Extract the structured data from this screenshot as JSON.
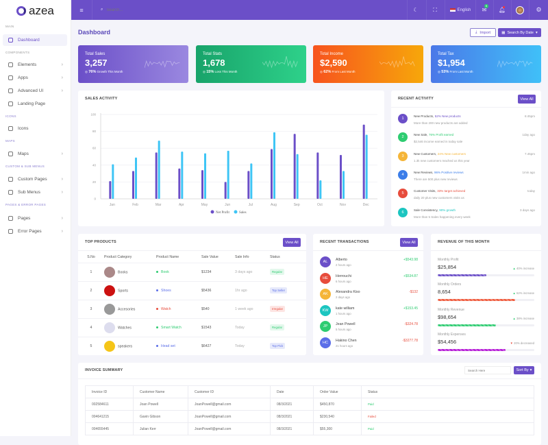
{
  "brand": "azea",
  "topbar": {
    "search_placeholder": "Search...",
    "language": "English",
    "mail_badge": "5"
  },
  "sidebar": {
    "sections": [
      "MAIN",
      "COMPONENTS",
      "ICONS",
      "MAPS",
      "CUSTOM & SUB MENUS",
      "PAGES & ERROR PAGES"
    ],
    "items": [
      {
        "label": "Dashboard"
      },
      {
        "label": "Elements"
      },
      {
        "label": "Apps"
      },
      {
        "label": "Advanced UI"
      },
      {
        "label": "Landing Page"
      },
      {
        "label": "Icons"
      },
      {
        "label": "Maps"
      },
      {
        "label": "Custom Pages"
      },
      {
        "label": "Sub Menus"
      },
      {
        "label": "Pages"
      },
      {
        "label": "Error Pages"
      }
    ]
  },
  "page": {
    "title": "Dashboard",
    "import_label": "Import",
    "search_date_label": "Search By Date"
  },
  "stats": [
    {
      "label": "Total Sales",
      "value": "3,257",
      "pct": "76%",
      "note": "Growth This Month"
    },
    {
      "label": "Total Stats",
      "value": "1,678",
      "pct": "15%",
      "note": "Loss This Month"
    },
    {
      "label": "Total Income",
      "value": "$2,590",
      "pct": "62%",
      "note": "From Last Month"
    },
    {
      "label": "Total Tax",
      "value": "$1,954",
      "pct": "53%",
      "note": "From Last Month"
    }
  ],
  "sales_activity": {
    "title": "SALES ACTIVITY"
  },
  "chart_data": {
    "type": "bar",
    "categories": [
      "Jan",
      "Feb",
      "Mar",
      "Apr",
      "May",
      "Jun",
      "Jul",
      "Aug",
      "Sep",
      "Oct",
      "Nov",
      "Dec"
    ],
    "series": [
      {
        "name": "Net Profit",
        "color": "#6b4fc8",
        "values": [
          21,
          33,
          55,
          36,
          34,
          20,
          33,
          59,
          77,
          55,
          52,
          88
        ]
      },
      {
        "name": "Sales",
        "color": "#3ec5f5",
        "values": [
          41,
          49,
          69,
          56,
          54,
          57,
          42,
          79,
          53,
          22,
          33,
          76
        ]
      }
    ],
    "ylim": [
      0,
      100
    ],
    "yticks": [
      "0",
      "20",
      "40",
      "60",
      "80",
      "100"
    ],
    "grid": true,
    "legend": "bottom"
  },
  "recent_activity": {
    "title": "RECENT ACTIVITY",
    "view_all": "View All",
    "items": [
      {
        "n": "1",
        "title": "New Products,",
        "hl": "52% New products",
        "desc": "More than 200 new products are added",
        "time": "6:45pm",
        "color": "#6b4fc8"
      },
      {
        "n": "2",
        "title": "New Sale,",
        "hl": "76% Profit earned",
        "desc": "$2,546 income earned in today sale",
        "time": "1day ago",
        "color": "#2ecc71"
      },
      {
        "n": "3",
        "title": "New Customers,",
        "hl": "24% New customers",
        "desc": "1.3k new customers reached us this year",
        "time": "7.45pm",
        "color": "#f5b538"
      },
      {
        "n": "4",
        "title": "New Reviews,",
        "hl": "96% Positive reviews",
        "desc": "There are 500 plus new reviews",
        "time": "1min ago",
        "color": "#3b7de9"
      },
      {
        "n": "5",
        "title": "Customer Visits,",
        "hl": "33% target achieved",
        "desc": "daily 20 plus new customers visits us",
        "time": "today",
        "color": "#e74c3c"
      },
      {
        "n": "6",
        "title": "Sale Consistency,",
        "hl": "90% growth",
        "desc": "More than 5 Sales happening every week",
        "time": "3 days ago",
        "color": "#1cc5c0"
      }
    ]
  },
  "top_products": {
    "title": "TOP PRODUCTS",
    "view_all": "View All",
    "columns": [
      "S.No",
      "Product Category",
      "Product Name",
      "Sale Value",
      "Sale Info",
      "Status"
    ],
    "rows": [
      {
        "no": "1",
        "category": "Books",
        "name": "Book",
        "value": "$1234",
        "info": "3 days ago",
        "status": "Regular"
      },
      {
        "no": "2",
        "category": "Sports",
        "name": "Shoes",
        "value": "$5436",
        "info": "1hr ago",
        "status": "Top Seller"
      },
      {
        "no": "3",
        "category": "Accesories",
        "name": "Watch",
        "value": "$540",
        "info": "1 week ago",
        "status": "Irregular"
      },
      {
        "no": "4",
        "category": "Watches",
        "name": "Smart Watch",
        "value": "$1543",
        "info": "Today",
        "status": "Regular"
      },
      {
        "no": "5",
        "category": "speakers",
        "name": "Head set",
        "value": "$6427",
        "info": "Today",
        "status": "Top Pick"
      }
    ]
  },
  "recent_transactions": {
    "title": "RECENT TRANSACTIONS",
    "view_all": "View All",
    "items": [
      {
        "initials": "AL",
        "name": "Alberto",
        "time": "2 hours ago",
        "amount": "+$543.98",
        "color": "#6b4fc8"
      },
      {
        "initials": "HE",
        "name": "Herrouchi",
        "time": "6 hours ago",
        "amount": "+$534.87",
        "color": "#e74c3c"
      },
      {
        "initials": "AK",
        "name": "Alexandra Kiso",
        "time": "2 days ago",
        "amount": "-$132",
        "color": "#f5b538"
      },
      {
        "initials": "KW",
        "name": "kate william",
        "time": "1 hours ago",
        "amount": "+$153.45",
        "color": "#1cc5c0"
      },
      {
        "initials": "JP",
        "name": "Jean Powell",
        "time": "5 hours ago",
        "amount": "-$324.78",
        "color": "#2ecc71"
      },
      {
        "initials": "HC",
        "name": "Hakino Chen",
        "time": "21 hours ago",
        "amount": "-$3277.78",
        "color": "#5b6ee8"
      }
    ]
  },
  "revenue": {
    "title": "REVENUE OF THIS MONTH",
    "items": [
      {
        "label": "Monthly Profit",
        "value": "$25,854",
        "change": "40% increase",
        "dir": "up",
        "progress": 50,
        "color": "#6b4fc8"
      },
      {
        "label": "Monthly Orders",
        "value": "8,654",
        "change": "62% increase",
        "dir": "up",
        "progress": 80,
        "color": "#ef5a3c"
      },
      {
        "label": "Monthly Revenue",
        "value": "$98,654",
        "change": "38% increase",
        "dir": "up",
        "progress": 60,
        "color": "#2ecc71"
      },
      {
        "label": "Monthly Expenses",
        "value": "$54,456",
        "change": "20% decreased",
        "dir": "down",
        "progress": 70,
        "color": "#b51ad6"
      }
    ]
  },
  "invoice": {
    "title": "INVOICE SUMMARY",
    "search_placeholder": "Search Here",
    "sort_label": "Sort By",
    "columns": [
      "Invoice ID",
      "Customer Name",
      "Customer ID",
      "Date",
      "Order Value",
      "Status"
    ],
    "rows": [
      {
        "id": "002584611",
        "name": "Joan Powell",
        "cid": "JoanPowell@gmail.com",
        "date": "08/3/2021",
        "value": "$450,870",
        "status": "Paid"
      },
      {
        "id": "004641215",
        "name": "Gavin Gibson",
        "cid": "JoanPowell@gmail.com",
        "date": "08/3/2021",
        "value": "$230,540",
        "status": "Failed"
      },
      {
        "id": "004655445",
        "name": "Julian Kerr",
        "cid": "JoanPowell@gmail.com",
        "date": "08/3/2021",
        "value": "$55,300",
        "status": "Paid"
      }
    ]
  }
}
